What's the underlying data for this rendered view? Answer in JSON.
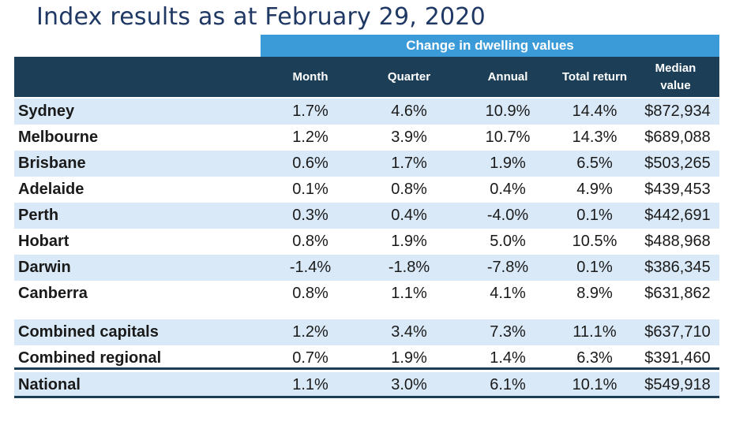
{
  "title": "Index results as at February 29, 2020",
  "band_label": "Change in dwelling values",
  "columns": [
    "Month",
    "Quarter",
    "Annual",
    "Total return",
    "Median value"
  ],
  "chart_data": {
    "type": "table",
    "title": "Index results as at February 29, 2020",
    "group_header": "Change in dwelling values",
    "columns": [
      "Month",
      "Quarter",
      "Annual",
      "Total return",
      "Median value"
    ],
    "rows": [
      {
        "name": "Sydney",
        "values": [
          "1.7%",
          "4.6%",
          "10.9%",
          "14.4%",
          "$872,934"
        ]
      },
      {
        "name": "Melbourne",
        "values": [
          "1.2%",
          "3.9%",
          "10.7%",
          "14.3%",
          "$689,088"
        ]
      },
      {
        "name": "Brisbane",
        "values": [
          "0.6%",
          "1.7%",
          "1.9%",
          "6.5%",
          "$503,265"
        ]
      },
      {
        "name": "Adelaide",
        "values": [
          "0.1%",
          "0.8%",
          "0.4%",
          "4.9%",
          "$439,453"
        ]
      },
      {
        "name": "Perth",
        "values": [
          "0.3%",
          "0.4%",
          "-4.0%",
          "0.1%",
          "$442,691"
        ]
      },
      {
        "name": "Hobart",
        "values": [
          "0.8%",
          "1.9%",
          "5.0%",
          "10.5%",
          "$488,968"
        ]
      },
      {
        "name": "Darwin",
        "values": [
          "-1.4%",
          "-1.8%",
          "-7.8%",
          "0.1%",
          "$386,345"
        ]
      },
      {
        "name": "Canberra",
        "values": [
          "0.8%",
          "1.1%",
          "4.1%",
          "8.9%",
          "$631,862"
        ]
      },
      {
        "name": "Combined capitals",
        "values": [
          "1.2%",
          "3.4%",
          "7.3%",
          "11.1%",
          "$637,710"
        ]
      },
      {
        "name": "Combined regional",
        "values": [
          "0.7%",
          "1.9%",
          "1.4%",
          "6.3%",
          "$391,460"
        ]
      },
      {
        "name": "National",
        "values": [
          "1.1%",
          "3.0%",
          "6.1%",
          "10.1%",
          "$549,918"
        ]
      }
    ]
  },
  "colors": {
    "title": "#1f3864",
    "band": "#3b9ad8",
    "header": "#1c3f57",
    "shade": "#d9e9f7"
  }
}
